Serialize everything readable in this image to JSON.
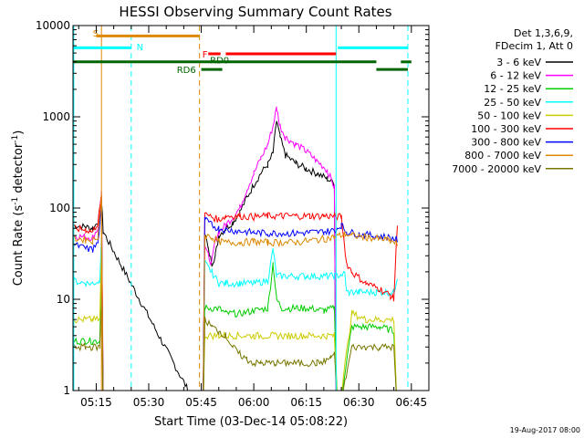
{
  "chart_data": {
    "type": "line",
    "title": "HESSI Observing Summary Count Rates",
    "xlabel": "Start Time (03-Dec-14 05:08:22)",
    "ylabel": "Count Rate (s",
    "ylabel_sup": "-1",
    "ylabel_tail": " detector",
    "ylabel_sup2": "-1",
    "ylabel_close": ")",
    "y_scale": "log",
    "ylim": [
      1,
      10000
    ],
    "xlim_minutes": [
      308.37,
      410.0
    ],
    "x_tick_minutes": [
      315,
      330,
      345,
      360,
      375,
      390,
      405
    ],
    "x_tick_labels": [
      "05:15",
      "05:30",
      "05:45",
      "06:00",
      "06:15",
      "06:30",
      "06:45"
    ],
    "y_tick_values": [
      1,
      10,
      100,
      1000,
      10000
    ],
    "y_tick_labels": [
      "1",
      "10",
      "100",
      "1000",
      "10000"
    ],
    "legend_header": [
      "Det 1,3,6,9,",
      "FDecim 1, Att 0"
    ],
    "series": [
      {
        "name": "3 - 6 keV",
        "color": "#000000",
        "points": [
          [
            308.4,
            65
          ],
          [
            312,
            62
          ],
          [
            314,
            60
          ],
          [
            315.5,
            70
          ],
          [
            316.5,
            120
          ],
          [
            317,
            55
          ],
          [
            345.5,
            0.5
          ],
          [
            346,
            55
          ],
          [
            347,
            35
          ],
          [
            348,
            25
          ],
          [
            349,
            30
          ],
          [
            350,
            50
          ],
          [
            352,
            60
          ],
          [
            354,
            70
          ],
          [
            356,
            90
          ],
          [
            358,
            130
          ],
          [
            360,
            180
          ],
          [
            362,
            240
          ],
          [
            364,
            300
          ],
          [
            365.5,
            400
          ],
          [
            366.5,
            900
          ],
          [
            367.5,
            600
          ],
          [
            369,
            380
          ],
          [
            372,
            310
          ],
          [
            375,
            270
          ],
          [
            378,
            240
          ],
          [
            381,
            210
          ],
          [
            383,
            185
          ],
          [
            383.5,
            0.5
          ]
        ]
      },
      {
        "name": "6 - 12 keV",
        "color": "#ff00ff",
        "points": [
          [
            308.4,
            50
          ],
          [
            312,
            48
          ],
          [
            314,
            48
          ],
          [
            315.5,
            60
          ],
          [
            316.5,
            150
          ],
          [
            317,
            0.8
          ],
          [
            345.5,
            0.5
          ],
          [
            346,
            40
          ],
          [
            347,
            30
          ],
          [
            348,
            25
          ],
          [
            349,
            45
          ],
          [
            350,
            55
          ],
          [
            352,
            65
          ],
          [
            354,
            80
          ],
          [
            356,
            100
          ],
          [
            358,
            160
          ],
          [
            360,
            240
          ],
          [
            362,
            350
          ],
          [
            364,
            500
          ],
          [
            365.5,
            800
          ],
          [
            366.5,
            1250
          ],
          [
            367.5,
            800
          ],
          [
            369,
            600
          ],
          [
            372,
            500
          ],
          [
            375,
            420
          ],
          [
            378,
            330
          ],
          [
            381,
            260
          ],
          [
            383,
            170
          ],
          [
            383.5,
            0.5
          ]
        ]
      },
      {
        "name": "12 - 25 keV",
        "color": "#00cc00",
        "points": [
          [
            308.4,
            3.5
          ],
          [
            312,
            3.5
          ],
          [
            314,
            3.5
          ],
          [
            316,
            3.5
          ],
          [
            316.5,
            20
          ],
          [
            317,
            0.5
          ],
          [
            345.5,
            0.5
          ],
          [
            346,
            8
          ],
          [
            350,
            8
          ],
          [
            352,
            7
          ],
          [
            356,
            7
          ],
          [
            360,
            7.5
          ],
          [
            364,
            8
          ],
          [
            365.5,
            25
          ],
          [
            366.5,
            10
          ],
          [
            368,
            8
          ],
          [
            372,
            8
          ],
          [
            376,
            8
          ],
          [
            380,
            7.5
          ],
          [
            383,
            8
          ],
          [
            384,
            0.5
          ],
          [
            388,
            5
          ],
          [
            392,
            5
          ],
          [
            396,
            5
          ],
          [
            400,
            4.5
          ],
          [
            401,
            0.5
          ]
        ]
      },
      {
        "name": "25 - 50 keV",
        "color": "#00ffff",
        "points": [
          [
            308.4,
            16
          ],
          [
            312,
            15
          ],
          [
            314,
            15
          ],
          [
            316,
            16
          ],
          [
            316.5,
            50
          ],
          [
            317,
            0.5
          ],
          [
            345.5,
            0.5
          ],
          [
            346,
            25
          ],
          [
            348,
            20
          ],
          [
            350,
            15
          ],
          [
            352,
            15
          ],
          [
            356,
            15
          ],
          [
            360,
            15
          ],
          [
            364,
            16
          ],
          [
            365.5,
            35
          ],
          [
            366.5,
            18
          ],
          [
            370,
            18
          ],
          [
            375,
            18
          ],
          [
            380,
            18
          ],
          [
            383,
            18
          ],
          [
            386,
            19
          ],
          [
            386.5,
            12
          ],
          [
            390,
            12
          ],
          [
            395,
            12
          ],
          [
            400,
            12
          ],
          [
            401,
            18
          ]
        ]
      },
      {
        "name": "50 - 100 keV",
        "color": "#cccc00",
        "points": [
          [
            308.4,
            6
          ],
          [
            312,
            6
          ],
          [
            314,
            6
          ],
          [
            316,
            6
          ],
          [
            316.5,
            30
          ],
          [
            317,
            0.5
          ],
          [
            345.5,
            0.5
          ],
          [
            346,
            4
          ],
          [
            350,
            4
          ],
          [
            355,
            4
          ],
          [
            360,
            4
          ],
          [
            365,
            4
          ],
          [
            370,
            4
          ],
          [
            375,
            4
          ],
          [
            380,
            4
          ],
          [
            383,
            4
          ],
          [
            384,
            0.5
          ],
          [
            388,
            7
          ],
          [
            392,
            6
          ],
          [
            396,
            6
          ],
          [
            400,
            6
          ],
          [
            401,
            0.5
          ]
        ]
      },
      {
        "name": "100 - 300 keV",
        "color": "#ff0000",
        "points": [
          [
            308.4,
            60
          ],
          [
            312,
            58
          ],
          [
            314,
            55
          ],
          [
            315.5,
            70
          ],
          [
            316.5,
            130
          ],
          [
            317,
            0.5
          ],
          [
            345.5,
            0.5
          ],
          [
            346,
            85
          ],
          [
            348,
            80
          ],
          [
            350,
            75
          ],
          [
            352,
            82
          ],
          [
            356,
            82
          ],
          [
            360,
            80
          ],
          [
            364,
            82
          ],
          [
            368,
            82
          ],
          [
            372,
            82
          ],
          [
            376,
            82
          ],
          [
            380,
            82
          ],
          [
            383,
            82
          ],
          [
            385,
            80
          ],
          [
            386.5,
            25
          ],
          [
            388,
            20
          ],
          [
            392,
            15
          ],
          [
            396,
            13
          ],
          [
            399,
            11
          ],
          [
            400,
            10
          ],
          [
            401,
            70
          ]
        ]
      },
      {
        "name": "300 - 800 keV",
        "color": "#0000ff",
        "points": [
          [
            308.4,
            40
          ],
          [
            312,
            36
          ],
          [
            314,
            35
          ],
          [
            315.5,
            42
          ],
          [
            316.5,
            100
          ],
          [
            317,
            0.5
          ],
          [
            345.5,
            0.5
          ],
          [
            346,
            75
          ],
          [
            348,
            65
          ],
          [
            350,
            60
          ],
          [
            352,
            58
          ],
          [
            356,
            56
          ],
          [
            360,
            54
          ],
          [
            364,
            53
          ],
          [
            368,
            53
          ],
          [
            372,
            53
          ],
          [
            376,
            54
          ],
          [
            380,
            55
          ],
          [
            383,
            57
          ],
          [
            385,
            65
          ],
          [
            386.5,
            55
          ],
          [
            390,
            52
          ],
          [
            394,
            50
          ],
          [
            398,
            48
          ],
          [
            400,
            46
          ],
          [
            401,
            45
          ]
        ]
      },
      {
        "name": "800 - 7000 keV",
        "color": "#dd8800",
        "points": [
          [
            308.4,
            47
          ],
          [
            312,
            45
          ],
          [
            314,
            44
          ],
          [
            315.5,
            50
          ],
          [
            316.5,
            140
          ],
          [
            317,
            0.5
          ],
          [
            345.5,
            0.5
          ],
          [
            346,
            50
          ],
          [
            348,
            48
          ],
          [
            350,
            43
          ],
          [
            352,
            42
          ],
          [
            356,
            42
          ],
          [
            360,
            43
          ],
          [
            364,
            42
          ],
          [
            368,
            42
          ],
          [
            372,
            42
          ],
          [
            376,
            44
          ],
          [
            380,
            46
          ],
          [
            383,
            48
          ],
          [
            386,
            52
          ],
          [
            388,
            50
          ],
          [
            392,
            48
          ],
          [
            396,
            46
          ],
          [
            399,
            44
          ],
          [
            401,
            40
          ]
        ]
      },
      {
        "name": "7000 - 20000 keV",
        "color": "#777700",
        "points": [
          [
            308.4,
            3
          ],
          [
            312,
            3
          ],
          [
            314,
            3
          ],
          [
            316,
            3
          ],
          [
            316.5,
            8
          ],
          [
            317,
            0.5
          ],
          [
            345.5,
            0.5
          ],
          [
            346,
            6
          ],
          [
            348,
            5
          ],
          [
            350,
            4.5
          ],
          [
            352,
            4
          ],
          [
            354,
            3
          ],
          [
            356,
            2.5
          ],
          [
            358,
            2.2
          ],
          [
            360,
            2.0
          ],
          [
            362,
            2.0
          ],
          [
            364,
            2.0
          ],
          [
            366,
            2.0
          ],
          [
            370,
            2.0
          ],
          [
            374,
            2.0
          ],
          [
            378,
            2.0
          ],
          [
            380,
            2.1
          ],
          [
            382,
            2.3
          ],
          [
            383,
            2.6
          ],
          [
            384,
            0.5
          ],
          [
            388,
            3
          ],
          [
            392,
            3
          ],
          [
            396,
            3
          ],
          [
            400,
            3
          ],
          [
            401,
            0.5
          ]
        ]
      }
    ],
    "state_bars": [
      {
        "label": "S",
        "color": "#dd8800",
        "x0": 315,
        "x1": 344.5,
        "y": 7700,
        "label_x": 314.0,
        "label_y": 8300
      },
      {
        "label": "N",
        "color": "#00ffff",
        "x0": 308.4,
        "x1": 325,
        "y": 5700,
        "label_x": 326.5,
        "label_y": 5900
      },
      {
        "label": "N",
        "color": "#00ffff",
        "x0": 384,
        "x1": 404,
        "y": 5700,
        "label_x": null,
        "label_y": null
      },
      {
        "label": "F",
        "color": "#ff0000",
        "x0": 347,
        "x1": 350.5,
        "y": 4900,
        "label_x": 345.3,
        "label_y": 4900
      },
      {
        "label": "",
        "color": "#ff0000",
        "x0": 352,
        "x1": 383.5,
        "y": 4900,
        "label_x": null,
        "label_y": null
      },
      {
        "label": "RD0",
        "color": "#006600",
        "x0": 308.4,
        "x1": 395,
        "y": 4000,
        "label_x": 347.5,
        "label_y": 4200
      },
      {
        "label": "",
        "color": "#006600",
        "x0": 402,
        "x1": 405,
        "y": 4000,
        "label_x": null,
        "label_y": null
      },
      {
        "label": "RD6",
        "color": "#006600",
        "x0": 345,
        "x1": 351,
        "y": 3300,
        "label_x": 338.0,
        "label_y": 3300
      },
      {
        "label": "",
        "color": "#006600",
        "x0": 395,
        "x1": 404,
        "y": 3300,
        "label_x": null,
        "label_y": null
      }
    ],
    "vlines": [
      {
        "x": 308.6,
        "color": "#00ffff",
        "dash": false
      },
      {
        "x": 316.5,
        "color": "#dd8800",
        "dash": false
      },
      {
        "x": 325,
        "color": "#00ffff",
        "dash": true
      },
      {
        "x": 344.5,
        "color": "#dd8800",
        "dash": true
      },
      {
        "x": 383.5,
        "color": "#00ffff",
        "dash": false
      },
      {
        "x": 404,
        "color": "#00ffff",
        "dash": true
      }
    ]
  },
  "footer": {
    "timestamp": "19-Aug-2017 08:00"
  }
}
